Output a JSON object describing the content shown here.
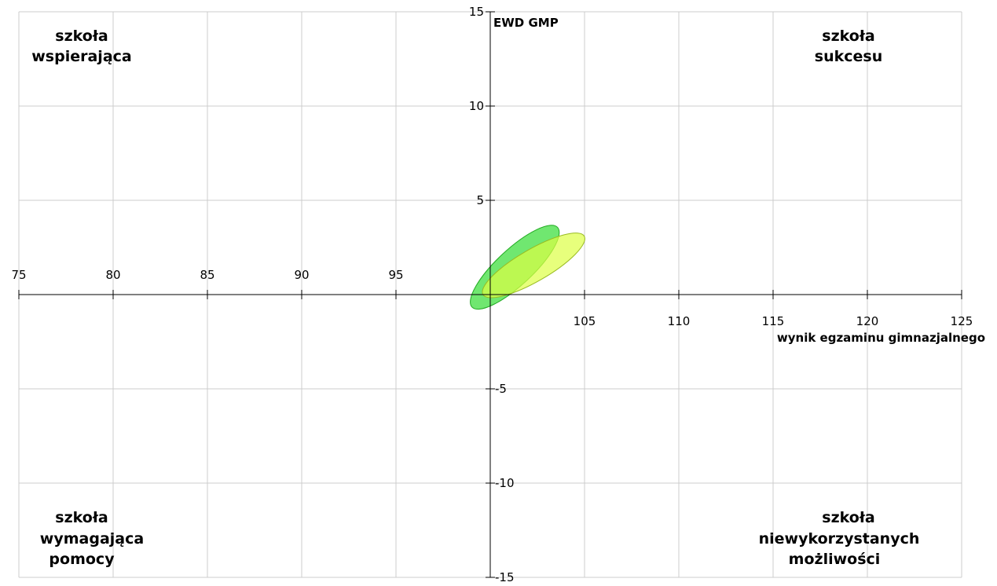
{
  "chart_data": {
    "type": "scatter",
    "xlabel": "wynik egzaminu gimnazjalnego",
    "ylabel": "EWD GMP",
    "xlim": [
      75,
      125
    ],
    "ylim": [
      -15,
      15
    ],
    "x_ticks": [
      75,
      80,
      85,
      90,
      95,
      105,
      110,
      115,
      120,
      125
    ],
    "y_ticks": [
      15,
      10,
      5,
      -5,
      -10,
      -15
    ],
    "grid": true,
    "quadrant_labels": {
      "top_left": [
        "szkoła",
        "wspierająca"
      ],
      "top_right": [
        "szkoła",
        "sukcesu"
      ],
      "bottom_left": [
        "szkoła",
        "wymagająca",
        "pomocy"
      ],
      "bottom_right": [
        "szkoła",
        "niewykorzystanych",
        "możliwości"
      ]
    },
    "series": [
      {
        "shape": "ellipse",
        "center": [
          101.3,
          1.45
        ],
        "rx": 3.1,
        "ry": 0.95,
        "angle_deg": -43,
        "fill": "#33dd33",
        "stroke": "#22aa22",
        "opacity": 0.7
      },
      {
        "shape": "ellipse",
        "center": [
          102.3,
          1.55
        ],
        "rx": 3.1,
        "ry": 0.85,
        "angle_deg": -30,
        "fill": "#ddff44",
        "stroke": "#99bb22",
        "opacity": 0.7
      }
    ]
  }
}
